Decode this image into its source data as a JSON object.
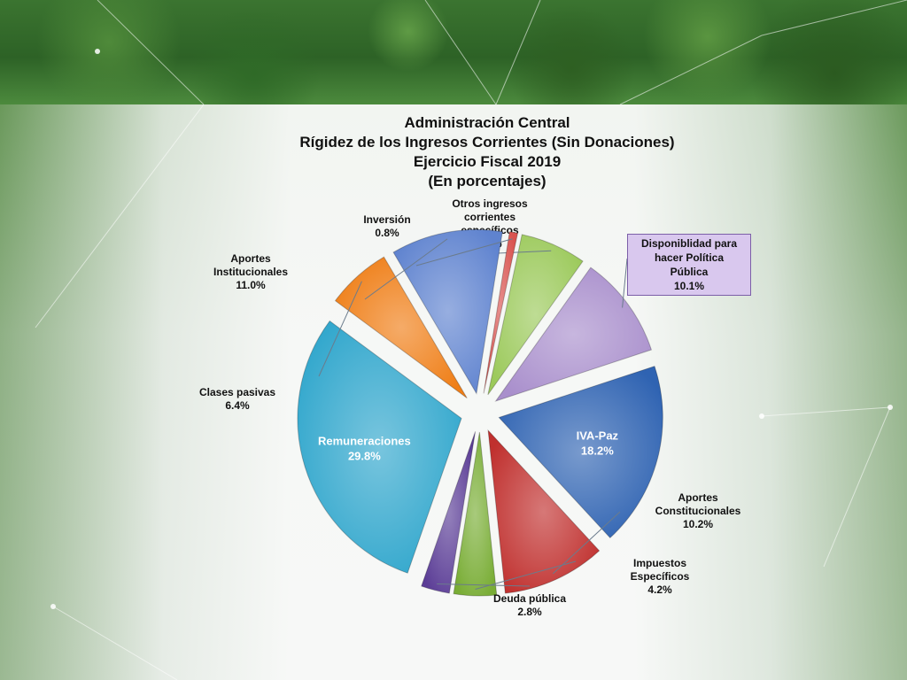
{
  "chart_data": {
    "type": "pie",
    "title_lines": [
      "Administración Central",
      "Rígidez de los Ingresos Corrientes (Sin Donaciones)",
      "Ejercicio Fiscal 2019",
      "(En porcentajes)"
    ],
    "unit": "%",
    "slices": [
      {
        "label_lines": [
          "Otros ingresos",
          "corrientes",
          "específicos"
        ],
        "value": 6.5,
        "value_text": "6.5%",
        "color": "#9bc95a"
      },
      {
        "label_lines": [
          "Disponiblidad para",
          "hacer Política",
          "Pública"
        ],
        "value": 10.1,
        "value_text": "10.1%",
        "color": "#a98fcc"
      },
      {
        "label_lines": [
          "IVA-Paz"
        ],
        "value": 18.2,
        "value_text": "18.2%",
        "color": "#2f63b2"
      },
      {
        "label_lines": [
          "Aportes",
          "Constitucionales"
        ],
        "value": 10.2,
        "value_text": "10.2%",
        "color": "#c0302e"
      },
      {
        "label_lines": [
          "Impuestos",
          "Específicos"
        ],
        "value": 4.2,
        "value_text": "4.2%",
        "color": "#79ad35"
      },
      {
        "label_lines": [
          "Deuda pública"
        ],
        "value": 2.8,
        "value_text": "2.8%",
        "color": "#5b3d96"
      },
      {
        "label_lines": [
          "Remuneraciones"
        ],
        "value": 29.8,
        "value_text": "29.8%",
        "color": "#2fa6cc"
      },
      {
        "label_lines": [
          "Clases pasivas"
        ],
        "value": 6.4,
        "value_text": "6.4%",
        "color": "#ef7e16"
      },
      {
        "label_lines": [
          "Aportes",
          "Institucionales"
        ],
        "value": 11.0,
        "value_text": "11.0%",
        "color": "#5f83cf"
      },
      {
        "label_lines": [
          "Inversión"
        ],
        "value": 0.8,
        "value_text": "0.8%",
        "color": "#d9534f"
      }
    ]
  }
}
